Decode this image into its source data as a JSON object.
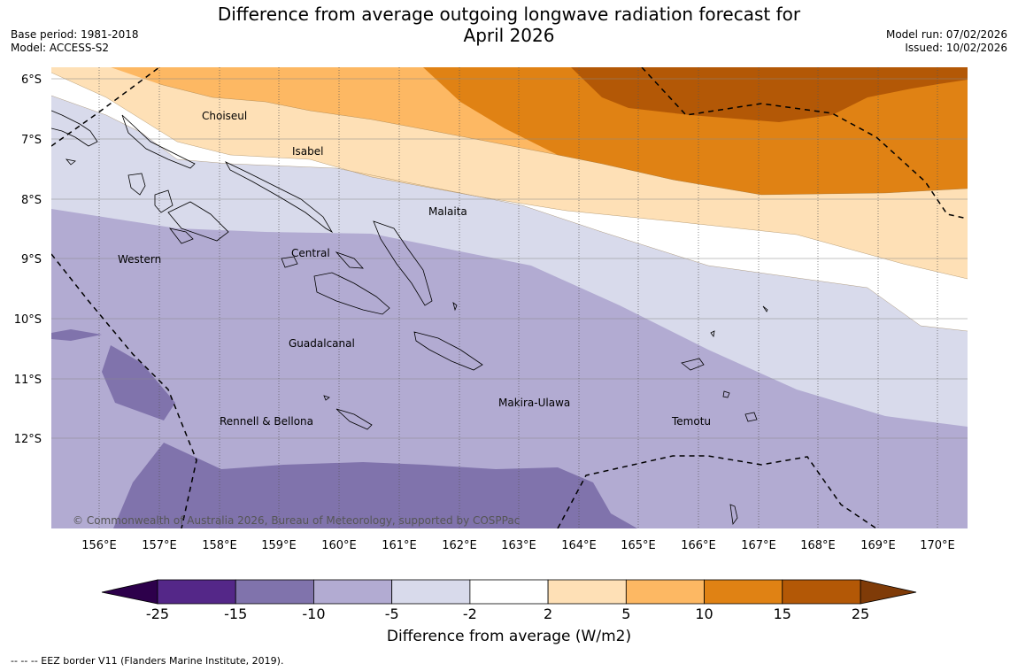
{
  "title": "Difference from average outgoing longwave radiation forecast for April 2026",
  "title_lines": [
    "Difference from average outgoing longwave radiation forecast for",
    "April 2026"
  ],
  "meta_left": {
    "base_period": "Base period: 1981-2018",
    "model": "Model: ACCESS-S2"
  },
  "meta_right": {
    "model_run": "Model run: 07/02/2026",
    "issued": "Issued: 10/02/2026"
  },
  "map": {
    "lat_labels": [
      "6°S",
      "7°S",
      "8°S",
      "9°S",
      "10°S",
      "11°S",
      "12°S"
    ],
    "lon_labels": [
      "156°E",
      "157°E",
      "158°E",
      "159°E",
      "160°E",
      "161°E",
      "162°E",
      "163°E",
      "164°E",
      "165°E",
      "166°E",
      "167°E",
      "168°E",
      "169°E",
      "170°E"
    ],
    "regions": [
      "Choiseul",
      "Isabel",
      "Malaita",
      "Western",
      "Central",
      "Guadalcanal",
      "Rennell & Bellona",
      "Makira-Ulawa",
      "Temotu"
    ],
    "copyright": "© Commonwealth of Australia 2026, Bureau of Meteorology, supported by COSPPac"
  },
  "colorbar": {
    "label": "Difference from average (W/m2)",
    "ticks": [
      "-25",
      "-15",
      "-10",
      "-5",
      "-2",
      "2",
      "5",
      "10",
      "15",
      "25"
    ],
    "colors": [
      "#542788",
      "#8073ac",
      "#b2abd2",
      "#d8daeb",
      "#ffffff",
      "#fee0b6",
      "#fdb863",
      "#e08214",
      "#b35806"
    ],
    "extend_low_color": "#2d004b",
    "extend_high_color": "#7f3b08"
  },
  "footnote": "--  --  -- EEZ border V11 (Flanders Marine Institute, 2019)."
}
